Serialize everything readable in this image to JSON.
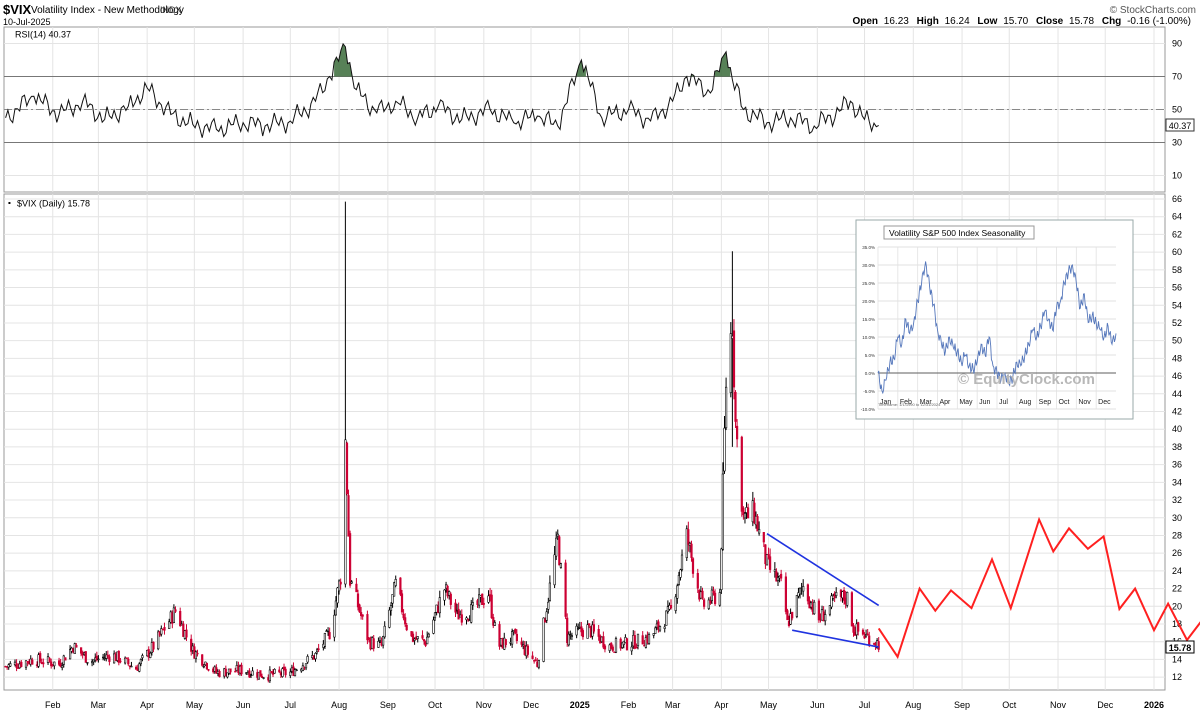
{
  "header": {
    "symbol": "$VIX",
    "name": "Volatility Index - New Methodology",
    "exchange": "INDX",
    "date": "10-Jul-2025",
    "brand": "© StockCharts.com",
    "quote": {
      "open_label": "Open",
      "open": "16.23",
      "high_label": "High",
      "high": "16.24",
      "low_label": "Low",
      "low": "15.70",
      "close_label": "Close",
      "close": "15.78",
      "chg_label": "Chg",
      "chg": "-0.16 (-1.00%)"
    }
  },
  "chart_data": [
    {
      "type": "line",
      "label": "RSI(14) 40.37",
      "current_value": "40.37",
      "ylim": [
        0,
        100
      ],
      "y_ticks": [
        10,
        30,
        50,
        70,
        90
      ],
      "reference_lines": [
        30,
        50,
        70
      ],
      "x_dates": [
        "2024-01-02",
        "2024-01-20",
        "2024-02-05",
        "2024-02-20",
        "2024-03-05",
        "2024-03-20",
        "2024-04-01",
        "2024-04-16",
        "2024-04-30",
        "2024-05-15",
        "2024-06-01",
        "2024-06-15",
        "2024-07-01",
        "2024-07-17",
        "2024-07-26",
        "2024-08-05",
        "2024-08-12",
        "2024-08-25",
        "2024-09-06",
        "2024-09-20",
        "2024-10-03",
        "2024-10-18",
        "2024-11-05",
        "2024-11-20",
        "2024-12-05",
        "2024-12-18",
        "2025-01-02",
        "2025-01-15",
        "2025-02-01",
        "2025-02-15",
        "2025-03-01",
        "2025-03-10",
        "2025-03-25",
        "2025-04-04",
        "2025-04-08",
        "2025-04-15",
        "2025-04-30",
        "2025-05-15",
        "2025-05-30",
        "2025-06-15",
        "2025-06-22",
        "2025-07-01",
        "2025-07-10"
      ],
      "values": [
        45,
        58,
        47,
        55,
        44,
        52,
        63,
        47,
        41,
        38,
        42,
        40,
        43,
        55,
        70,
        88,
        62,
        48,
        55,
        45,
        52,
        44,
        50,
        42,
        46,
        40,
        80,
        45,
        50,
        43,
        55,
        70,
        60,
        85,
        68,
        50,
        42,
        45,
        40,
        49,
        55,
        44,
        40.37
      ]
    },
    {
      "type": "candlestick",
      "label": "$VIX (Daily) 15.78",
      "last_value": "15.78",
      "ylim": [
        11,
        66
      ],
      "y_ticks": [
        12,
        14,
        16,
        18,
        20,
        22,
        24,
        26,
        28,
        30,
        32,
        34,
        36,
        38,
        40,
        42,
        44,
        46,
        48,
        50,
        52,
        54,
        56,
        58,
        60,
        62,
        64,
        66
      ],
      "x_ticks": [
        "Feb",
        "Mar",
        "Apr",
        "May",
        "Jun",
        "Jul",
        "Aug",
        "Sep",
        "Oct",
        "Nov",
        "Dec",
        "2025",
        "Feb",
        "Mar",
        "Apr",
        "May",
        "Jun",
        "Jul",
        "Aug",
        "Sep",
        "Oct",
        "Nov",
        "Dec",
        "2026"
      ],
      "x_tick_dates": [
        "2024-02-01",
        "2024-03-01",
        "2024-04-01",
        "2024-05-01",
        "2024-06-01",
        "2024-07-01",
        "2024-08-01",
        "2024-09-01",
        "2024-10-01",
        "2024-11-01",
        "2024-12-01",
        "2025-01-01",
        "2025-02-01",
        "2025-03-01",
        "2025-04-01",
        "2025-05-01",
        "2025-06-01",
        "2025-07-01",
        "2025-08-01",
        "2025-09-01",
        "2025-10-01",
        "2025-11-01",
        "2025-12-01",
        "2026-01-01"
      ],
      "date_range": [
        "2024-01-01",
        "2026-01-08"
      ],
      "price_path": [
        [
          "2024-01-02",
          13.2
        ],
        [
          "2024-01-20",
          14.0
        ],
        [
          "2024-02-05",
          13.5
        ],
        [
          "2024-02-14",
          15.5
        ],
        [
          "2024-02-25",
          13.8
        ],
        [
          "2024-03-10",
          14.5
        ],
        [
          "2024-03-25",
          13.0
        ],
        [
          "2024-04-05",
          15.5
        ],
        [
          "2024-04-19",
          19.5
        ],
        [
          "2024-04-30",
          15.0
        ],
        [
          "2024-05-15",
          12.5
        ],
        [
          "2024-06-01",
          12.8
        ],
        [
          "2024-06-15",
          12.2
        ],
        [
          "2024-07-01",
          12.5
        ],
        [
          "2024-07-17",
          14.5
        ],
        [
          "2024-07-26",
          17.0
        ],
        [
          "2024-08-02",
          23.4
        ],
        [
          "2024-08-05",
          38.6
        ],
        [
          "2024-08-08",
          23.0
        ],
        [
          "2024-08-20",
          16.0
        ],
        [
          "2024-08-28",
          15.5
        ],
        [
          "2024-09-06",
          22.4
        ],
        [
          "2024-09-15",
          16.5
        ],
        [
          "2024-09-25",
          16.0
        ],
        [
          "2024-10-07",
          22.0
        ],
        [
          "2024-10-15",
          19.0
        ],
        [
          "2024-10-25",
          19.5
        ],
        [
          "2024-11-04",
          21.5
        ],
        [
          "2024-11-10",
          15.5
        ],
        [
          "2024-11-20",
          16.5
        ],
        [
          "2024-12-05",
          13.5
        ],
        [
          "2024-12-18",
          27.6
        ],
        [
          "2024-12-24",
          16.5
        ],
        [
          "2025-01-06",
          17.5
        ],
        [
          "2025-01-20",
          15.5
        ],
        [
          "2025-02-01",
          15.8
        ],
        [
          "2025-02-15",
          16.5
        ],
        [
          "2025-02-28",
          19.5
        ],
        [
          "2025-03-10",
          27.9
        ],
        [
          "2025-03-20",
          20.0
        ],
        [
          "2025-03-31",
          21.5
        ],
        [
          "2025-04-04",
          45.3
        ],
        [
          "2025-04-08",
          52.3
        ],
        [
          "2025-04-10",
          40.7
        ],
        [
          "2025-04-15",
          30.0
        ],
        [
          "2025-04-22",
          30.5
        ],
        [
          "2025-04-30",
          24.7
        ],
        [
          "2025-05-10",
          22.0
        ],
        [
          "2025-05-13",
          18.0
        ],
        [
          "2025-05-23",
          22.3
        ],
        [
          "2025-06-02",
          18.5
        ],
        [
          "2025-06-13",
          20.8
        ],
        [
          "2025-06-20",
          21.0
        ],
        [
          "2025-06-24",
          17.5
        ],
        [
          "2025-07-03",
          16.5
        ],
        [
          "2025-07-10",
          15.78
        ]
      ],
      "candles_per_window": 4,
      "candle_spread": 0.05,
      "spikes": [
        {
          "date": "2024-08-05",
          "high": 65.7,
          "low": 23.0
        },
        {
          "date": "2025-04-08",
          "high": 60.1,
          "low": 38.0
        }
      ],
      "candle_colors": {
        "up": "#000000",
        "down": "#cc0033"
      },
      "trendlines": [
        {
          "color": "#1f33e0",
          "points": [
            [
              "2025-04-30",
              28.2
            ],
            [
              "2025-07-10",
              20.1
            ]
          ]
        },
        {
          "color": "#1f33e0",
          "points": [
            [
              "2025-05-16",
              17.3
            ],
            [
              "2025-07-10",
              15.4
            ]
          ]
        }
      ],
      "projection": {
        "color": "#ff2020",
        "points": [
          [
            "2025-07-10",
            17.5
          ],
          [
            "2025-07-22",
            14.3
          ],
          [
            "2025-08-05",
            22.0
          ],
          [
            "2025-08-15",
            19.5
          ],
          [
            "2025-08-25",
            21.8
          ],
          [
            "2025-09-07",
            19.8
          ],
          [
            "2025-09-20",
            25.3
          ],
          [
            "2025-10-02",
            19.8
          ],
          [
            "2025-10-20",
            29.8
          ],
          [
            "2025-10-29",
            26.2
          ],
          [
            "2025-11-08",
            28.8
          ],
          [
            "2025-11-20",
            26.5
          ],
          [
            "2025-11-30",
            27.9
          ],
          [
            "2025-12-10",
            19.7
          ],
          [
            "2025-12-20",
            22.0
          ],
          [
            "2026-01-01",
            17.3
          ],
          [
            "2026-01-10",
            20.3
          ],
          [
            "2026-01-22",
            16.2
          ],
          [
            "2026-02-03",
            19.0
          ]
        ]
      }
    },
    {
      "type": "line",
      "title": "Volatility S&P 500 Index Seasonality",
      "watermark": "© EquityClock.com",
      "note": "Timeframe: 1/1/1990 to 12/31/2024",
      "ylim": [
        -10,
        35
      ],
      "y_ticks": [
        "-10.0%",
        "-5.0%",
        "0.0%",
        "5.0%",
        "10.0%",
        "15.0%",
        "20.0%",
        "25.0%",
        "30.0%",
        "35.0%"
      ],
      "x_ticks": [
        "Jan",
        "Feb",
        "Mar",
        "Apr",
        "May",
        "Jun",
        "Jul",
        "Aug",
        "Sep",
        "Oct",
        "Nov",
        "Dec"
      ],
      "series_color": "#5577bb",
      "values": [
        0,
        -5,
        -2,
        3,
        4,
        10,
        8,
        15,
        11,
        14,
        20,
        25,
        31,
        24,
        19,
        12,
        8,
        6,
        10,
        7,
        6,
        3,
        5,
        2,
        1,
        3,
        8,
        5,
        10,
        2,
        0,
        -2,
        0,
        -3,
        -1,
        3,
        2,
        5,
        8,
        12,
        10,
        13,
        17,
        15,
        12,
        18,
        20,
        25,
        28,
        30,
        25,
        18,
        22,
        14,
        16,
        14,
        12,
        10,
        13,
        8,
        11
      ]
    }
  ]
}
